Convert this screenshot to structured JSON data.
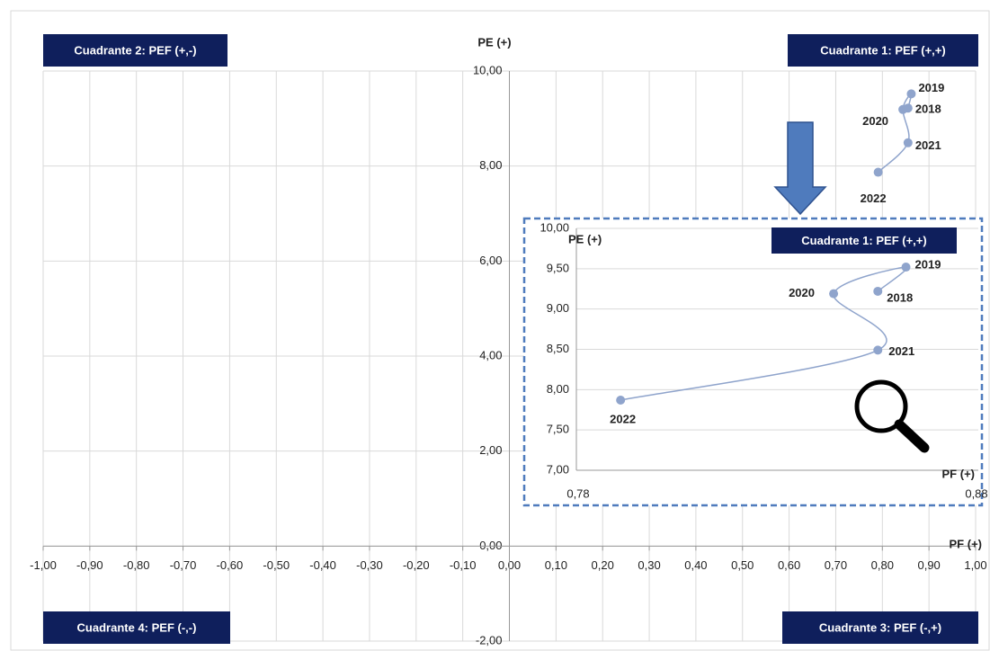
{
  "chart_data": [
    {
      "type": "scatter",
      "x_label": "PF (+)",
      "y_label": "PE (+)",
      "annotations": [
        "Cuadrante 2: PEF (+,-)",
        "Cuadrante 1: PEF (+,+)",
        "Cuadrante 4: PEF (-,-)",
        "Cuadrante 3: PEF (-,+)"
      ],
      "series": [
        {
          "color": "#8fa4cc",
          "x": [
            0.855,
            0.862,
            0.844,
            0.855,
            0.791
          ],
          "values": [
            9.22,
            9.52,
            9.19,
            8.49,
            7.87
          ],
          "labels": [
            "2018",
            "2019",
            "2020",
            "2021",
            "2022"
          ]
        }
      ],
      "xlim": [
        -1,
        1
      ],
      "ylim": [
        -2,
        10
      ],
      "xticks": [
        {
          "value": -1,
          "label": "-1,00"
        },
        {
          "value": -0.9,
          "label": "-0,90"
        },
        {
          "value": -0.8,
          "label": "-0,80"
        },
        {
          "value": -0.7,
          "label": "-0,70"
        },
        {
          "value": -0.6,
          "label": "-0,60"
        },
        {
          "value": -0.5,
          "label": "-0,50"
        },
        {
          "value": -0.4,
          "label": "-0,40"
        },
        {
          "value": -0.3,
          "label": "-0,30"
        },
        {
          "value": -0.2,
          "label": "-0,20"
        },
        {
          "value": -0.1,
          "label": "-0,10"
        },
        {
          "value": 0,
          "label": "0,00"
        },
        {
          "value": 0.1,
          "label": "0,10"
        },
        {
          "value": 0.2,
          "label": "0,20"
        },
        {
          "value": 0.3,
          "label": "0,30"
        },
        {
          "value": 0.4,
          "label": "0,40"
        },
        {
          "value": 0.5,
          "label": "0,50"
        },
        {
          "value": 0.6,
          "label": "0,60"
        },
        {
          "value": 0.7,
          "label": "0,70"
        },
        {
          "value": 0.8,
          "label": "0,80"
        },
        {
          "value": 0.9,
          "label": "0,90"
        },
        {
          "value": 1,
          "label": "1,00"
        }
      ],
      "yticks": [
        {
          "value": -2,
          "label": "-2,00"
        },
        {
          "value": 0,
          "label": "0,00"
        },
        {
          "value": 2,
          "label": "2,00"
        },
        {
          "value": 4,
          "label": "4,00"
        },
        {
          "value": 6,
          "label": "6,00"
        },
        {
          "value": 8,
          "label": "8,00"
        },
        {
          "value": 10,
          "label": "10,00"
        }
      ],
      "grid": true
    },
    {
      "type": "scatter",
      "x_label": "PF (+)",
      "y_label": "PE (+)",
      "annotations": [
        "Cuadrante 1: PEF (+,+)"
      ],
      "series": [
        {
          "color": "#8fa4cc",
          "x": [
            0.855,
            0.862,
            0.844,
            0.855,
            0.791
          ],
          "values": [
            9.22,
            9.52,
            9.19,
            8.49,
            7.87
          ],
          "labels": [
            "2018",
            "2019",
            "2020",
            "2021",
            "2022"
          ]
        }
      ],
      "xlim": [
        0.78,
        0.88
      ],
      "ylim": [
        7,
        10
      ],
      "xticks": [
        {
          "value": 0.78,
          "label": "0,78"
        },
        {
          "value": 0.88,
          "label": "0,88"
        }
      ],
      "yticks": [
        {
          "value": 7,
          "label": "7,00"
        },
        {
          "value": 7.5,
          "label": "7,50"
        },
        {
          "value": 8,
          "label": "8,00"
        },
        {
          "value": 8.5,
          "label": "8,50"
        },
        {
          "value": 9,
          "label": "9,00"
        },
        {
          "value": 9.5,
          "label": "9,50"
        },
        {
          "value": 10,
          "label": "10,00"
        }
      ],
      "grid": true
    }
  ]
}
